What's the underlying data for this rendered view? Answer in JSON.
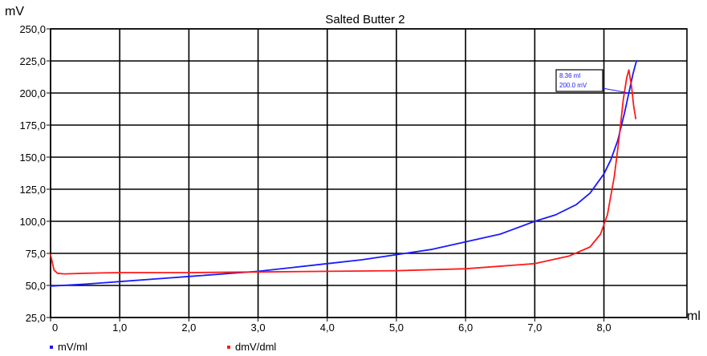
{
  "chart_data": {
    "type": "line",
    "title": "Salted Butter 2",
    "ylabel": "mV",
    "xlabel": "ml",
    "xlim": [
      0,
      9.2
    ],
    "ylim": [
      25,
      250
    ],
    "x_ticks": [
      "0",
      "1,0",
      "2,0",
      "3,0",
      "4,0",
      "5,0",
      "6,0",
      "7,0",
      "8,0"
    ],
    "y_ticks": [
      "25,0",
      "50,0",
      "75,0",
      "100,0",
      "125,0",
      "150,0",
      "175,0",
      "200,0",
      "225,0",
      "250,0"
    ],
    "grid": true,
    "legend_position": "bottom-left",
    "annotation": {
      "x": 8.36,
      "y": 200.0,
      "line1": "8.36 ml",
      "line2": "200.0 mV"
    },
    "series": [
      {
        "name": "mV/ml",
        "color": "#1a1aff",
        "x": [
          0,
          0.5,
          1.0,
          1.5,
          2.0,
          2.5,
          3.0,
          3.5,
          4.0,
          4.5,
          5.0,
          5.5,
          6.0,
          6.5,
          7.0,
          7.3,
          7.6,
          7.8,
          8.0,
          8.1,
          8.2,
          8.3,
          8.36,
          8.42,
          8.47
        ],
        "y": [
          49.5,
          51,
          53,
          55,
          57,
          59,
          61,
          64,
          67,
          70,
          74,
          78,
          84,
          90,
          100,
          105,
          113,
          122,
          137,
          148,
          163,
          185,
          200,
          215,
          225
        ]
      },
      {
        "name": "dmV/dml",
        "color": "#ff1a1a",
        "x": [
          0,
          0.05,
          0.1,
          0.2,
          0.5,
          1.0,
          2.0,
          3.0,
          4.0,
          5.0,
          6.0,
          7.0,
          7.5,
          7.8,
          7.95,
          8.05,
          8.15,
          8.22,
          8.28,
          8.33,
          8.36,
          8.4,
          8.43,
          8.46
        ],
        "y": [
          74,
          62,
          59.5,
          59,
          59.5,
          60,
          60,
          60.5,
          61,
          61.5,
          63,
          67,
          73,
          80,
          90,
          105,
          135,
          165,
          195,
          212,
          218,
          205,
          190,
          180
        ]
      }
    ]
  }
}
